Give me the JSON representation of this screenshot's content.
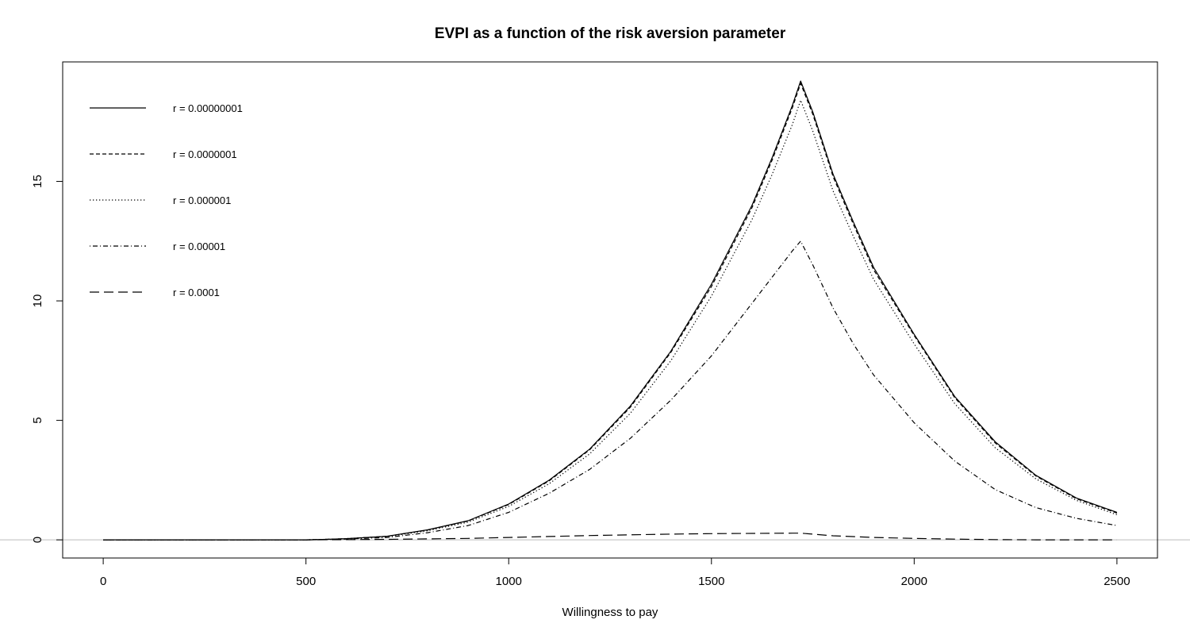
{
  "chart_data": {
    "type": "line",
    "title": "EVPI as a function of the risk aversion parameter",
    "xlabel": "Willingness to pay",
    "ylabel": "",
    "xlim": [
      -100,
      2600
    ],
    "ylim": [
      -0.76,
      20
    ],
    "xticks": [
      0,
      500,
      1000,
      1500,
      2000,
      2500
    ],
    "yticks": [
      0,
      5,
      10,
      15
    ],
    "hline_y": 0,
    "grid": false,
    "legend_position": "top-left",
    "series": [
      {
        "name": "r = 0.00000001",
        "dash": "solid",
        "x": [
          0,
          500,
          550,
          600,
          700,
          800,
          900,
          1000,
          1100,
          1200,
          1300,
          1400,
          1500,
          1600,
          1650,
          1700,
          1720,
          1750,
          1800,
          1850,
          1900,
          2000,
          2100,
          2200,
          2300,
          2400,
          2500
        ],
        "y": [
          0,
          0,
          0.02,
          0.05,
          0.15,
          0.42,
          0.8,
          1.5,
          2.5,
          3.8,
          5.6,
          7.9,
          10.7,
          14.0,
          16.0,
          18.2,
          19.2,
          17.9,
          15.3,
          13.3,
          11.4,
          8.6,
          6.0,
          4.1,
          2.7,
          1.75,
          1.15
        ]
      },
      {
        "name": "r = 0.0000001",
        "dash": "dashed",
        "x": [
          0,
          500,
          550,
          600,
          700,
          800,
          900,
          1000,
          1100,
          1200,
          1300,
          1400,
          1500,
          1600,
          1650,
          1700,
          1720,
          1750,
          1800,
          1850,
          1900,
          2000,
          2100,
          2200,
          2300,
          2400,
          2500
        ],
        "y": [
          0,
          0,
          0.02,
          0.05,
          0.15,
          0.41,
          0.79,
          1.48,
          2.47,
          3.77,
          5.55,
          7.85,
          10.6,
          13.9,
          15.9,
          18.1,
          19.1,
          17.8,
          15.2,
          13.2,
          11.3,
          8.55,
          5.95,
          4.05,
          2.67,
          1.72,
          1.12
        ]
      },
      {
        "name": "r = 0.000001",
        "dash": "dotted",
        "x": [
          0,
          500,
          550,
          600,
          700,
          800,
          900,
          1000,
          1100,
          1200,
          1300,
          1400,
          1500,
          1600,
          1650,
          1700,
          1720,
          1750,
          1800,
          1850,
          1900,
          2000,
          2100,
          2200,
          2300,
          2400,
          2500
        ],
        "y": [
          0,
          0,
          0.02,
          0.05,
          0.14,
          0.38,
          0.74,
          1.4,
          2.35,
          3.6,
          5.3,
          7.5,
          10.2,
          13.4,
          15.3,
          17.4,
          18.4,
          17.1,
          14.6,
          12.7,
          10.9,
          8.2,
          5.7,
          3.85,
          2.55,
          1.65,
          1.05
        ]
      },
      {
        "name": "r = 0.00001",
        "dash": "dashdot",
        "x": [
          0,
          500,
          550,
          600,
          700,
          800,
          900,
          1000,
          1100,
          1200,
          1300,
          1400,
          1500,
          1600,
          1650,
          1700,
          1720,
          1750,
          1800,
          1850,
          1900,
          2000,
          2100,
          2200,
          2300,
          2400,
          2500
        ],
        "y": [
          0,
          0,
          0.01,
          0.03,
          0.1,
          0.3,
          0.6,
          1.15,
          1.95,
          2.95,
          4.25,
          5.85,
          7.7,
          9.9,
          11.0,
          12.1,
          12.5,
          11.5,
          9.7,
          8.2,
          6.9,
          4.9,
          3.3,
          2.1,
          1.35,
          0.9,
          0.6
        ]
      },
      {
        "name": "r = 0.0001",
        "dash": "longdash",
        "x": [
          0,
          500,
          700,
          900,
          1000,
          1100,
          1200,
          1300,
          1400,
          1500,
          1600,
          1700,
          1720,
          1800,
          1900,
          2000,
          2100,
          2200,
          2300,
          2500
        ],
        "y": [
          0,
          0,
          0.02,
          0.06,
          0.1,
          0.14,
          0.18,
          0.21,
          0.24,
          0.26,
          0.27,
          0.28,
          0.28,
          0.17,
          0.1,
          0.06,
          0.03,
          0.01,
          0,
          0
        ]
      }
    ]
  }
}
